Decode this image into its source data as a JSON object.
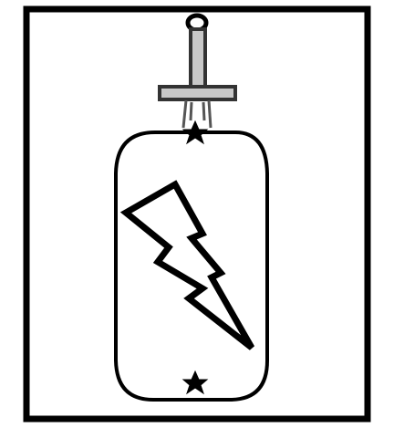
{
  "colors": {
    "background": "#ffffff",
    "stroke": "#000000",
    "handle_fill": "#c8c8c8",
    "handle_stroke": "#333333"
  },
  "icons": {
    "frame": "frame-border",
    "device": "battery-with-sword-hilt",
    "symbol": "lightning-bolt-icon",
    "top_terminal": "star-icon",
    "bottom_terminal": "star-icon"
  }
}
